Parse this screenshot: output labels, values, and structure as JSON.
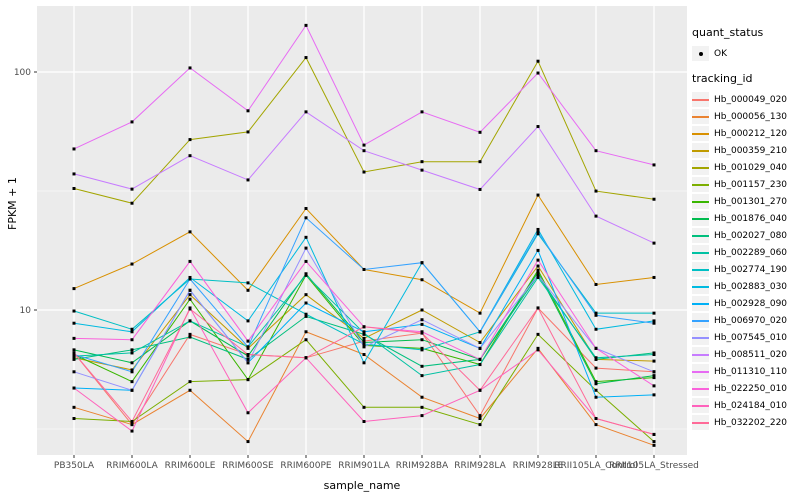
{
  "figure": {
    "background": "#FFFFFF",
    "panel_background": "#EBEBEB",
    "grid_color": "#FFFFFF",
    "tick_color": "#333333",
    "tick_label_color": "#4D4D4D",
    "point_color": "#000000",
    "legend_key_background": "#F2F2F2"
  },
  "legend": {
    "quant_status_title": "quant_status",
    "quant_status_entries": [
      {
        "label": "OK",
        "marker": "point-icon"
      }
    ],
    "tracking_id_title": "tracking_id"
  },
  "chart_data": {
    "type": "line",
    "title": "",
    "xlabel": "sample_name",
    "ylabel": "FPKM + 1",
    "y_scale": "log10",
    "ylim": [
      2.3,
      190
    ],
    "y_major_ticks": [
      10,
      100
    ],
    "y_minor_ticks": [
      3.162,
      31.62
    ],
    "grid": true,
    "legend_position": "right",
    "point_marker": "black square, one per observation",
    "categories": [
      "PB350LA",
      "RRIM600LA",
      "RRIM600LE",
      "RRIM600SE",
      "RRIM600PE",
      "RRIM901LA",
      "RRIM928BA",
      "RRIM928LA",
      "RRIM928LE",
      "RRII105LA_Control",
      "RRII105LA_Stressed"
    ],
    "series": [
      {
        "name": "Hb_000049_020",
        "color": "#F8766D",
        "values": [
          6.6,
          3.3,
          7.9,
          6.5,
          6.3,
          7.4,
          8.0,
          3.6,
          10.2,
          5.7,
          5.5
        ]
      },
      {
        "name": "Hb_000056_130",
        "color": "#EA8331",
        "values": [
          3.9,
          3.3,
          4.6,
          2.8,
          8.1,
          6.5,
          4.3,
          3.5,
          6.9,
          3.3,
          2.7
        ]
      },
      {
        "name": "Hb_000212_120",
        "color": "#D89000",
        "values": [
          12.3,
          15.6,
          21.3,
          12.1,
          26.7,
          14.8,
          13.4,
          9.7,
          30.4,
          12.8,
          13.7
        ]
      },
      {
        "name": "Hb_000359_210",
        "color": "#C09B00",
        "values": [
          6.3,
          5.6,
          11.6,
          6.9,
          11.6,
          7.6,
          10.0,
          7.3,
          15.3,
          6.2,
          6.1
        ]
      },
      {
        "name": "Hb_001029_040",
        "color": "#A3A500",
        "values": [
          32.4,
          28.1,
          52.0,
          56.0,
          115.0,
          38.0,
          42.0,
          42.0,
          111.0,
          31.6,
          29.2
        ]
      },
      {
        "name": "Hb_001157_230",
        "color": "#7CAE00",
        "values": [
          3.5,
          3.4,
          5.0,
          5.1,
          7.5,
          3.9,
          3.9,
          3.3,
          7.9,
          4.6,
          2.8
        ]
      },
      {
        "name": "Hb_001301_270",
        "color": "#39B600",
        "values": [
          6.5,
          5.0,
          11.1,
          5.1,
          14.0,
          7.1,
          6.9,
          5.9,
          14.7,
          5.0,
          5.2
        ]
      },
      {
        "name": "Hb_001876_040",
        "color": "#00BB4E",
        "values": [
          6.8,
          6.0,
          9.0,
          6.4,
          14.2,
          7.3,
          7.5,
          6.2,
          14.4,
          4.9,
          5.3
        ]
      },
      {
        "name": "Hb_002027_080",
        "color": "#00BF7D",
        "values": [
          6.2,
          6.8,
          7.7,
          6.2,
          9.4,
          7.9,
          5.8,
          6.2,
          14.0,
          6.2,
          6.6
        ]
      },
      {
        "name": "Hb_002289_060",
        "color": "#00C1A3",
        "values": [
          6.4,
          6.6,
          9.0,
          7.0,
          14.0,
          8.0,
          5.3,
          5.9,
          13.7,
          6.3,
          6.5
        ]
      },
      {
        "name": "Hb_002774_190",
        "color": "#00BFC4",
        "values": [
          9.9,
          8.3,
          13.5,
          13.0,
          9.6,
          7.2,
          6.8,
          8.1,
          20.9,
          9.7,
          9.7
        ]
      },
      {
        "name": "Hb_002883_030",
        "color": "#00BAE0",
        "values": [
          8.8,
          8.1,
          13.7,
          9.0,
          20.2,
          6.0,
          15.8,
          8.1,
          21.8,
          8.3,
          9.0
        ]
      },
      {
        "name": "Hb_002928_090",
        "color": "#00B0F6",
        "values": [
          4.7,
          4.6,
          12.1,
          6.0,
          10.7,
          8.1,
          8.7,
          6.9,
          17.8,
          4.3,
          4.4
        ]
      },
      {
        "name": "Hb_006970_020",
        "color": "#35A2FF",
        "values": [
          6.5,
          5.5,
          13.5,
          7.0,
          24.4,
          14.8,
          15.8,
          8.1,
          21.2,
          9.5,
          8.8
        ]
      },
      {
        "name": "Hb_007545_010",
        "color": "#9590FF",
        "values": [
          5.5,
          4.6,
          12.1,
          6.0,
          18.2,
          7.0,
          9.1,
          6.9,
          14.0,
          6.9,
          5.5
        ]
      },
      {
        "name": "Hb_008511_020",
        "color": "#C77CFF",
        "values": [
          37.3,
          32.2,
          44.5,
          35.2,
          68.0,
          46.7,
          38.7,
          32.1,
          59.0,
          24.8,
          19.1
        ]
      },
      {
        "name": "Hb_011310_110",
        "color": "#E76BF3",
        "values": [
          47.5,
          61.7,
          104.0,
          68.7,
          157.0,
          49.3,
          68.0,
          55.8,
          99.0,
          46.7,
          40.7
        ]
      },
      {
        "name": "Hb_022250_010",
        "color": "#FA62DB",
        "values": [
          7.6,
          7.5,
          16.0,
          7.4,
          16.0,
          8.5,
          8.1,
          6.2,
          16.2,
          6.9,
          4.8
        ]
      },
      {
        "name": "Hb_024184_010",
        "color": "#FF62BC",
        "values": [
          4.7,
          3.1,
          10.2,
          3.7,
          6.3,
          3.4,
          3.6,
          4.6,
          6.8,
          3.5,
          3.0
        ]
      },
      {
        "name": "Hb_032202_220",
        "color": "#FF6A98",
        "values": [
          6.6,
          3.4,
          10.1,
          6.5,
          6.3,
          8.5,
          8.0,
          4.6,
          10.2,
          3.5,
          3.0
        ]
      }
    ]
  }
}
